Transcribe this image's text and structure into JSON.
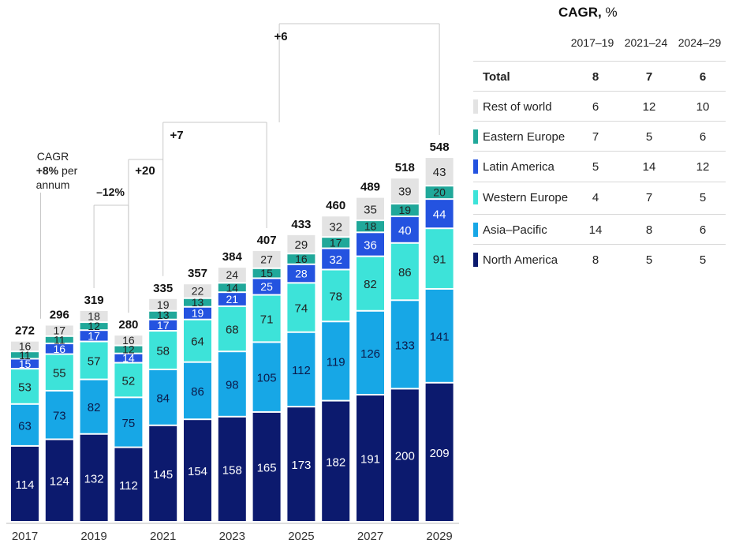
{
  "chart_data": {
    "type": "bar",
    "stacked": true,
    "categories": [
      "2017",
      "2018",
      "2019",
      "2020",
      "2021",
      "2022",
      "2023",
      "2024",
      "2025",
      "2026",
      "2027",
      "2028",
      "2029"
    ],
    "x_tick_labels": [
      "2017",
      "",
      "2019",
      "",
      "2021",
      "",
      "2023",
      "",
      "2025",
      "",
      "2027",
      "",
      "2029"
    ],
    "series": [
      {
        "name": "North America",
        "color": "#0c1a6e",
        "values": [
          114,
          124,
          132,
          112,
          145,
          154,
          158,
          165,
          173,
          182,
          191,
          200,
          209
        ]
      },
      {
        "name": "Asia–Pacific",
        "color": "#17a7e6",
        "values": [
          63,
          73,
          82,
          75,
          84,
          86,
          98,
          105,
          112,
          119,
          126,
          133,
          141
        ]
      },
      {
        "name": "Western Europe",
        "color": "#3de3d9",
        "values": [
          53,
          55,
          57,
          52,
          58,
          64,
          68,
          71,
          74,
          78,
          82,
          86,
          91
        ]
      },
      {
        "name": "Latin America",
        "color": "#2453e0",
        "values": [
          15,
          16,
          17,
          14,
          17,
          19,
          21,
          25,
          28,
          32,
          36,
          40,
          44
        ]
      },
      {
        "name": "Eastern Europe",
        "color": "#20a89a",
        "values": [
          11,
          11,
          12,
          12,
          13,
          13,
          14,
          15,
          16,
          17,
          18,
          19,
          20
        ]
      },
      {
        "name": "Rest of world",
        "color": "#e3e3e3",
        "values": [
          16,
          17,
          18,
          16,
          19,
          22,
          24,
          27,
          29,
          32,
          35,
          39,
          43
        ]
      }
    ],
    "totals": [
      272,
      296,
      319,
      280,
      335,
      357,
      384,
      407,
      433,
      460,
      489,
      518,
      548
    ],
    "annotations": {
      "cagr_note": [
        "CAGR",
        "+8%",
        "per",
        "annum"
      ],
      "change_2019_2020": "–12%",
      "change_2020_2021": "+20",
      "change_2021_2022": "+7",
      "change_2024_2025": "+6"
    }
  },
  "cagr_table": {
    "title": "CAGR,",
    "unit": "%",
    "periods": [
      "2017–19",
      "2021–24",
      "2024–29"
    ],
    "rows": [
      {
        "label": "Total",
        "values": [
          "8",
          "7",
          "6"
        ],
        "color": ""
      },
      {
        "label": "Rest of world",
        "values": [
          "6",
          "12",
          "10"
        ],
        "color": "#e3e3e3"
      },
      {
        "label": "Eastern Europe",
        "values": [
          "7",
          "5",
          "6"
        ],
        "color": "#20a89a"
      },
      {
        "label": "Latin America",
        "values": [
          "5",
          "14",
          "12"
        ],
        "color": "#2453e0"
      },
      {
        "label": "Western Europe",
        "values": [
          "4",
          "7",
          "5"
        ],
        "color": "#3de3d9"
      },
      {
        "label": "Asia–Pacific",
        "values": [
          "14",
          "8",
          "6"
        ],
        "color": "#17a7e6"
      },
      {
        "label": "North America",
        "values": [
          "8",
          "5",
          "5"
        ],
        "color": "#0c1a6e"
      }
    ]
  }
}
